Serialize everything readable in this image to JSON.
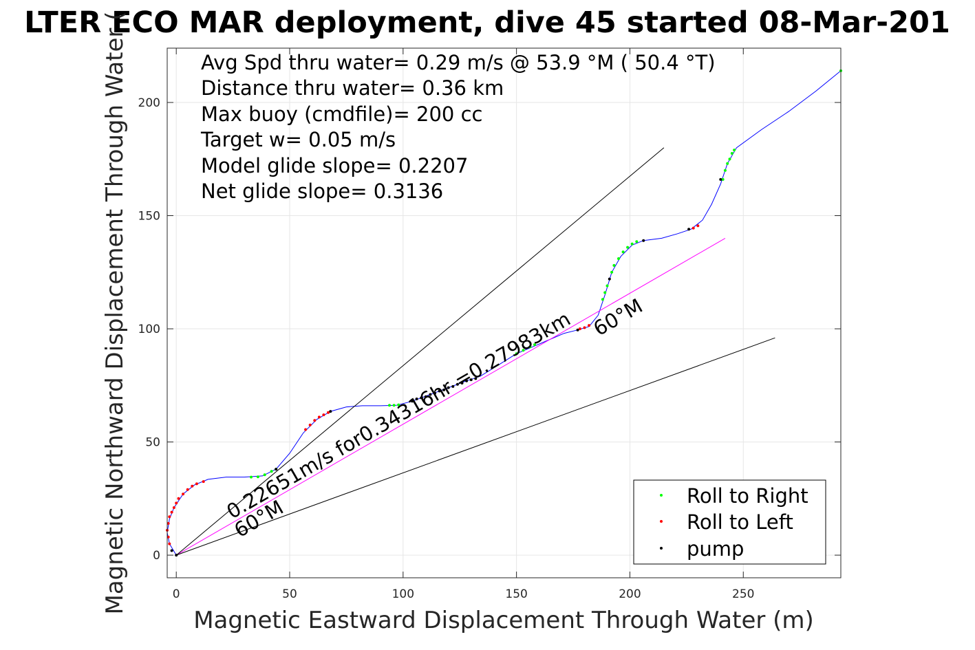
{
  "chart_data": {
    "type": "line",
    "title": "LTER ECO MAR deployment, dive 45 started 08-Mar-201",
    "xlabel": "Magnetic Eastward Displacement Through Water (m)",
    "ylabel": "Magnetic Northward Displacement Through Water (",
    "xlim": [
      -4,
      293
    ],
    "ylim": [
      -10,
      224
    ],
    "xticks": [
      0,
      50,
      100,
      150,
      200,
      250
    ],
    "yticks": [
      0,
      50,
      100,
      150,
      200
    ],
    "grid": true,
    "stats": [
      "Avg Spd thru water=  0.29 m/s @  53.9 °M ( 50.4 °T)",
      "Distance thru water=  0.36 km",
      "Max buoy (cmdfile)= 200 cc",
      "Target w= 0.05 m/s",
      "Model glide slope= 0.2207",
      "Net glide slope= 0.3136"
    ],
    "annotations": {
      "speed_label": "0.22651m/s for0.34316hr =0.27983km",
      "heading_label_upper": "60°M",
      "heading_label_lower": "60°M"
    },
    "legend": {
      "position": "bottom-right",
      "entries": [
        {
          "label": "Roll to Right",
          "color": "#00ff00"
        },
        {
          "label": "Roll to Left",
          "color": "#ff0000"
        },
        {
          "label": "pump",
          "color": "#000000"
        }
      ]
    },
    "series": [
      {
        "color": "#0000ff",
        "points": [
          [
            0,
            0
          ],
          [
            -3,
            5
          ],
          [
            -4,
            10
          ],
          [
            -3,
            16
          ],
          [
            -1,
            21
          ],
          [
            3,
            27
          ],
          [
            8,
            31
          ],
          [
            14,
            33.5
          ],
          [
            22,
            34.5
          ],
          [
            30,
            34.5
          ],
          [
            38,
            35
          ],
          [
            44,
            38
          ],
          [
            50,
            45
          ],
          [
            56,
            54
          ],
          [
            62,
            60
          ],
          [
            68,
            63.5
          ],
          [
            75,
            65.5
          ],
          [
            82,
            66
          ],
          [
            90,
            66
          ],
          [
            97,
            66.2
          ],
          [
            104,
            68
          ],
          [
            112,
            71
          ],
          [
            120,
            74
          ],
          [
            128,
            77
          ],
          [
            134,
            79
          ],
          [
            142,
            84
          ],
          [
            150,
            89
          ],
          [
            157,
            92
          ],
          [
            164,
            95
          ],
          [
            171,
            98
          ],
          [
            177,
            99.5
          ],
          [
            182,
            101
          ],
          [
            186,
            106
          ],
          [
            189,
            115
          ],
          [
            192,
            125
          ],
          [
            196,
            132
          ],
          [
            201,
            137
          ],
          [
            206,
            139
          ],
          [
            214,
            140
          ],
          [
            221,
            142
          ],
          [
            227,
            144
          ],
          [
            232,
            148
          ],
          [
            236,
            155
          ],
          [
            240,
            164
          ],
          [
            243,
            173
          ],
          [
            247,
            180
          ],
          [
            258,
            188
          ],
          [
            270,
            196
          ],
          [
            282,
            205
          ],
          [
            293,
            214
          ]
        ]
      },
      {
        "color": "#ff00ff",
        "points": [
          [
            0,
            0
          ],
          [
            242,
            140
          ]
        ]
      },
      {
        "color": "#000000",
        "points": [
          [
            0,
            0
          ],
          [
            215,
            180
          ]
        ]
      },
      {
        "color": "#000000",
        "points": [
          [
            0,
            0
          ],
          [
            264,
            96
          ]
        ]
      }
    ],
    "roll_right_points": [
      [
        33,
        34.5
      ],
      [
        36,
        34.6
      ],
      [
        39,
        35.5
      ],
      [
        42,
        37
      ],
      [
        44,
        38
      ],
      [
        94,
        66.2
      ],
      [
        96,
        66.2
      ],
      [
        98,
        66.4
      ],
      [
        150,
        89
      ],
      [
        153,
        90.5
      ],
      [
        156,
        92
      ],
      [
        158,
        93
      ],
      [
        188,
        113
      ],
      [
        189,
        116
      ],
      [
        190,
        119
      ],
      [
        192,
        125
      ],
      [
        193,
        128
      ],
      [
        195,
        131
      ],
      [
        197,
        134
      ],
      [
        199,
        136
      ],
      [
        201,
        137.5
      ],
      [
        203,
        138.5
      ],
      [
        241,
        166
      ],
      [
        242,
        170
      ],
      [
        243,
        173
      ],
      [
        244,
        175
      ],
      [
        245,
        177.5
      ],
      [
        246,
        179
      ],
      [
        293,
        214
      ]
    ],
    "roll_left_points": [
      [
        -3,
        5
      ],
      [
        -3.5,
        8
      ],
      [
        -4,
        11
      ],
      [
        -3.5,
        14
      ],
      [
        -3,
        17
      ],
      [
        -2,
        19
      ],
      [
        -1,
        21
      ],
      [
        0,
        23
      ],
      [
        1,
        25
      ],
      [
        3,
        27
      ],
      [
        5,
        29
      ],
      [
        7,
        30.5
      ],
      [
        9,
        31.5
      ],
      [
        12,
        32.5
      ],
      [
        57,
        55.5
      ],
      [
        59,
        57.5
      ],
      [
        61,
        59.5
      ],
      [
        63,
        61
      ],
      [
        65,
        62
      ],
      [
        67,
        63
      ],
      [
        178,
        100
      ],
      [
        180,
        100.5
      ],
      [
        182,
        101.5
      ],
      [
        228,
        144.5
      ],
      [
        230,
        145.5
      ]
    ],
    "pump_points": [
      [
        0,
        0
      ],
      [
        -2,
        2
      ],
      [
        44,
        38
      ],
      [
        68,
        63.5
      ],
      [
        104,
        68
      ],
      [
        106,
        69
      ],
      [
        108,
        69.5
      ],
      [
        110,
        70
      ],
      [
        112,
        71
      ],
      [
        114,
        71.5
      ],
      [
        116,
        72.5
      ],
      [
        118,
        73
      ],
      [
        120,
        74
      ],
      [
        122,
        74.5
      ],
      [
        124,
        75.5
      ],
      [
        126,
        76
      ],
      [
        128,
        77
      ],
      [
        130,
        77.5
      ],
      [
        132,
        78
      ],
      [
        177,
        99.5
      ],
      [
        191,
        122
      ],
      [
        206,
        139
      ],
      [
        226,
        144
      ],
      [
        240,
        166
      ]
    ]
  }
}
